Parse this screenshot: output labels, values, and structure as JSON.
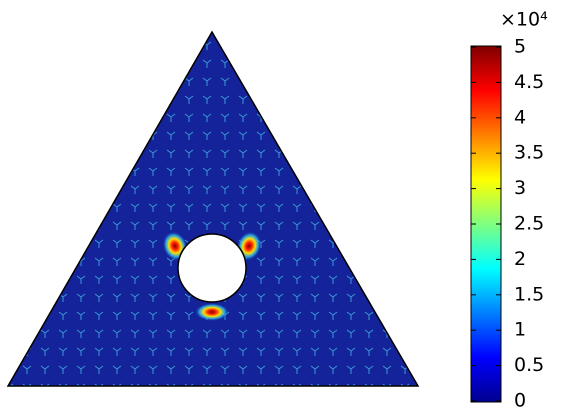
{
  "chart_data": {
    "type": "surface",
    "colorbar": {
      "multiplier": "×10⁴",
      "lim": [
        0,
        5
      ],
      "ticks": [
        0,
        0.5,
        1,
        1.5,
        2,
        2.5,
        3,
        3.5,
        4,
        4.5,
        5
      ],
      "colormap": "jet"
    },
    "peaks": {
      "values": [
        5,
        5,
        5
      ]
    }
  }
}
